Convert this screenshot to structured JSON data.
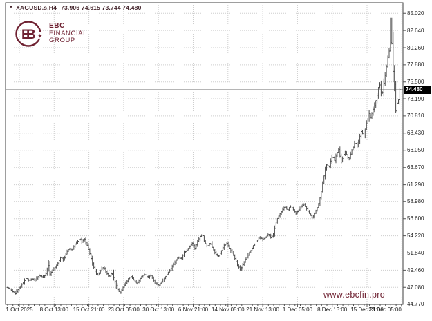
{
  "title_bar": {
    "symbol_period": "XAGUSD.s,H4",
    "ohlc_text": "73.906 74.615 73.744 74.480",
    "dropdown_icon": "▼"
  },
  "logo": {
    "monogram_left": "E",
    "monogram_right": "B",
    "sparkle": "✦",
    "line1": "EBC",
    "line2": "FINANCIAL",
    "line3": "GROUP"
  },
  "watermark": "www.ebcfin.pro",
  "colors": {
    "brand": "#6f2232",
    "title_text": "#45262d",
    "bar": "#4d4d4d",
    "grid": "#cdcdcd",
    "axis_text": "#1c1c1c",
    "border": "#3c3c3c",
    "price_line": "#b5b5b5",
    "badge_bg": "#000000",
    "badge_text": "#ffffff"
  },
  "chart_data": {
    "type": "ohlc-bar",
    "symbol": "XAGUSD.s",
    "timeframe": "H4",
    "open": "73.906",
    "high": "74.615",
    "low": "73.744",
    "close": "74.480",
    "current_price": 74.48,
    "current_price_label": "74.480",
    "y_range": [
      44.77,
      85.02
    ],
    "grid": true,
    "y_axis_labels": [
      "85.020",
      "82.640",
      "80.260",
      "77.880",
      "75.500",
      "73.190",
      "70.810",
      "68.430",
      "66.050",
      "63.670",
      "61.290",
      "58.980",
      "56.600",
      "54.220",
      "51.840",
      "49.460",
      "47.080",
      "44.770"
    ],
    "x_axis_labels": [
      "1 Oct 2025",
      "8 Oct 13:00",
      "15 Oct 21:00",
      "23 Oct 05:00",
      "30 Oct 13:00",
      "6 Nov 21:00",
      "14 Nov 05:00",
      "21 Nov 13:00",
      "1 Dec 05:00",
      "8 Dec 13:00",
      "15 Dec 21:00",
      "23 Dec 05:00"
    ],
    "price_path": [
      [
        10,
        47.1
      ],
      [
        14,
        46.9
      ],
      [
        18,
        46.5
      ],
      [
        22,
        46.2
      ],
      [
        26,
        46.8
      ],
      [
        30,
        47.3
      ],
      [
        34,
        47.8
      ],
      [
        38,
        48.4
      ],
      [
        42,
        48.0
      ],
      [
        46,
        48.3
      ],
      [
        50,
        48.0
      ],
      [
        54,
        48.5
      ],
      [
        58,
        48.8
      ],
      [
        62,
        48.4
      ],
      [
        66,
        48.9
      ],
      [
        70,
        50.2
      ],
      [
        72,
        48.9
      ],
      [
        76,
        49.4
      ],
      [
        80,
        49.9
      ],
      [
        84,
        50.5
      ],
      [
        88,
        51.3
      ],
      [
        92,
        50.8
      ],
      [
        96,
        51.9
      ],
      [
        100,
        52.5
      ],
      [
        104,
        52.2
      ],
      [
        108,
        53.0
      ],
      [
        112,
        53.4
      ],
      [
        116,
        53.9
      ],
      [
        118,
        53.3
      ],
      [
        122,
        53.8
      ],
      [
        126,
        52.9
      ],
      [
        130,
        51.7
      ],
      [
        134,
        50.3
      ],
      [
        138,
        49.2
      ],
      [
        142,
        48.7
      ],
      [
        146,
        49.5
      ],
      [
        150,
        49.9
      ],
      [
        154,
        49.1
      ],
      [
        158,
        48.5
      ],
      [
        162,
        49.2
      ],
      [
        166,
        48.0
      ],
      [
        170,
        46.8
      ],
      [
        174,
        46.3
      ],
      [
        178,
        47.1
      ],
      [
        182,
        47.7
      ],
      [
        186,
        48.3
      ],
      [
        190,
        48.6
      ],
      [
        194,
        48.0
      ],
      [
        198,
        47.6
      ],
      [
        202,
        48.2
      ],
      [
        206,
        48.7
      ],
      [
        210,
        48.9
      ],
      [
        214,
        48.4
      ],
      [
        218,
        48.8
      ],
      [
        222,
        48.1
      ],
      [
        226,
        47.6
      ],
      [
        230,
        47.3
      ],
      [
        234,
        47.9
      ],
      [
        238,
        48.4
      ],
      [
        242,
        48.9
      ],
      [
        246,
        49.5
      ],
      [
        250,
        50.1
      ],
      [
        254,
        50.7
      ],
      [
        258,
        51.3
      ],
      [
        262,
        51.0
      ],
      [
        266,
        51.8
      ],
      [
        270,
        52.2
      ],
      [
        274,
        52.7
      ],
      [
        278,
        53.2
      ],
      [
        282,
        52.5
      ],
      [
        286,
        53.5
      ],
      [
        290,
        54.2
      ],
      [
        293,
        54.4
      ],
      [
        296,
        53.3
      ],
      [
        300,
        52.7
      ],
      [
        304,
        53.3
      ],
      [
        308,
        52.4
      ],
      [
        312,
        51.7
      ],
      [
        316,
        51.3
      ],
      [
        320,
        52.1
      ],
      [
        324,
        52.9
      ],
      [
        328,
        53.2
      ],
      [
        332,
        52.5
      ],
      [
        336,
        51.8
      ],
      [
        340,
        51.0
      ],
      [
        344,
        50.1
      ],
      [
        348,
        49.5
      ],
      [
        352,
        50.4
      ],
      [
        356,
        51.1
      ],
      [
        360,
        51.7
      ],
      [
        364,
        52.4
      ],
      [
        368,
        53.0
      ],
      [
        372,
        53.6
      ],
      [
        376,
        54.1
      ],
      [
        380,
        53.7
      ],
      [
        384,
        54.0
      ],
      [
        388,
        54.4
      ],
      [
        392,
        53.9
      ],
      [
        396,
        54.6
      ],
      [
        400,
        56.4
      ],
      [
        404,
        57.1
      ],
      [
        408,
        57.7
      ],
      [
        412,
        58.3
      ],
      [
        416,
        57.7
      ],
      [
        420,
        58.4
      ],
      [
        424,
        57.9
      ],
      [
        428,
        57.3
      ],
      [
        432,
        57.8
      ],
      [
        436,
        58.3
      ],
      [
        440,
        58.6
      ],
      [
        444,
        57.9
      ],
      [
        448,
        57.2
      ],
      [
        452,
        56.7
      ],
      [
        456,
        57.5
      ],
      [
        460,
        58.3
      ],
      [
        463,
        59.5
      ],
      [
        466,
        61.0
      ],
      [
        468,
        62.2
      ],
      [
        470,
        63.2
      ],
      [
        473,
        64.2
      ],
      [
        476,
        63.6
      ],
      [
        478,
        64.5
      ],
      [
        481,
        65.3
      ],
      [
        484,
        64.6
      ],
      [
        487,
        65.6
      ],
      [
        490,
        66.2
      ],
      [
        492,
        65.1
      ],
      [
        494,
        64.3
      ],
      [
        497,
        65.4
      ],
      [
        500,
        66.0
      ],
      [
        502,
        65.2
      ],
      [
        505,
        64.8
      ],
      [
        508,
        65.8
      ],
      [
        511,
        66.5
      ],
      [
        514,
        67.2
      ],
      [
        517,
        66.6
      ],
      [
        520,
        67.8
      ],
      [
        523,
        68.8
      ],
      [
        526,
        68.0
      ],
      [
        529,
        69.3
      ],
      [
        532,
        70.3
      ],
      [
        534,
        71.2
      ],
      [
        536,
        70.6
      ],
      [
        539,
        71.5
      ],
      [
        542,
        72.3
      ],
      [
        545,
        73.4
      ],
      [
        548,
        74.8
      ],
      [
        549,
        75.4
      ],
      [
        551,
        74.2
      ],
      [
        553,
        73.8
      ],
      [
        555,
        75.2
      ],
      [
        557,
        76.3
      ],
      [
        559,
        77.6
      ],
      [
        561,
        78.9
      ],
      [
        563,
        79.8
      ],
      [
        565,
        81.0
      ],
      [
        566,
        83.2
      ],
      [
        567,
        80.3
      ],
      [
        568,
        78.4
      ],
      [
        569,
        76.5
      ],
      [
        570,
        75.8
      ],
      [
        571,
        74.9
      ],
      [
        572,
        72.4
      ],
      [
        573,
        70.9
      ],
      [
        574,
        72.0
      ],
      [
        575,
        73.1
      ],
      [
        576,
        72.6
      ],
      [
        577,
        73.6
      ],
      [
        578,
        74.48
      ]
    ],
    "spike_highs": [
      [
        70,
        50.9
      ],
      [
        566,
        84.4
      ]
    ]
  }
}
